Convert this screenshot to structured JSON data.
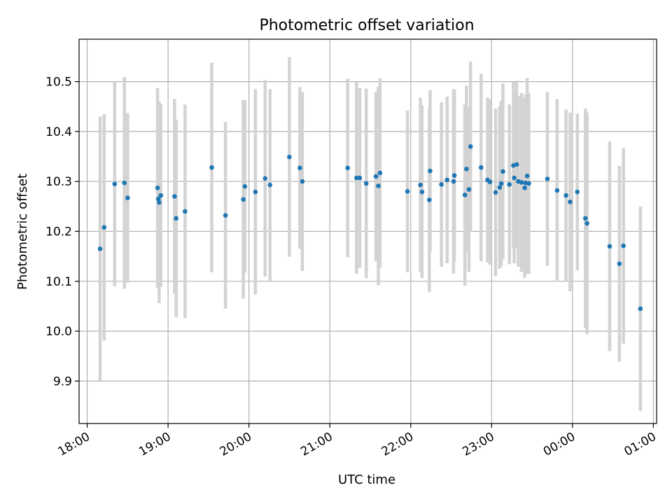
{
  "chart_data": {
    "type": "scatter",
    "title": "Photometric offset variation",
    "xlabel": "UTC time",
    "ylabel": "Photometric offset",
    "grid": true,
    "xlim": [
      -0.1,
      7.04
    ],
    "ylim": [
      9.815,
      10.585
    ],
    "xticks": [
      {
        "v": 0,
        "label": "18:00"
      },
      {
        "v": 1,
        "label": "19:00"
      },
      {
        "v": 2,
        "label": "20:00"
      },
      {
        "v": 3,
        "label": "21:00"
      },
      {
        "v": 4,
        "label": "22:00"
      },
      {
        "v": 5,
        "label": "23:00"
      },
      {
        "v": 6,
        "label": "00:00"
      },
      {
        "v": 7,
        "label": "01:00"
      }
    ],
    "yticks": [
      {
        "v": 9.9,
        "label": "9.9"
      },
      {
        "v": 10.0,
        "label": "10.0"
      },
      {
        "v": 10.1,
        "label": "10.1"
      },
      {
        "v": 10.2,
        "label": "10.2"
      },
      {
        "v": 10.3,
        "label": "10.3"
      },
      {
        "v": 10.4,
        "label": "10.4"
      },
      {
        "v": 10.5,
        "label": "10.5"
      }
    ],
    "colors": {
      "point": "#1f77b4",
      "errorbar": "#d3d3d3",
      "grid": "#b0b0b0"
    },
    "series": [
      {
        "name": "offset",
        "x_hours_from_1800": [
          0.16,
          0.21,
          0.34,
          0.46,
          0.5,
          0.87,
          0.88,
          0.89,
          0.91,
          1.08,
          1.1,
          1.21,
          1.54,
          1.71,
          1.93,
          1.95,
          2.08,
          2.2,
          2.26,
          2.5,
          2.63,
          2.66,
          3.22,
          3.33,
          3.37,
          3.45,
          3.57,
          3.6,
          3.62,
          3.96,
          4.12,
          4.14,
          4.23,
          4.24,
          4.38,
          4.45,
          4.53,
          4.54,
          4.67,
          4.69,
          4.72,
          4.74,
          4.87,
          4.95,
          4.98,
          5.05,
          5.1,
          5.12,
          5.14,
          5.22,
          5.27,
          5.28,
          5.31,
          5.33,
          5.37,
          5.41,
          5.42,
          5.44,
          5.46,
          5.69,
          5.81,
          5.92,
          5.97,
          6.06,
          6.16,
          6.18,
          6.46,
          6.58,
          6.63,
          6.84
        ],
        "y": [
          10.165,
          10.208,
          10.295,
          10.297,
          10.267,
          10.287,
          10.265,
          10.258,
          10.272,
          10.27,
          10.226,
          10.24,
          10.328,
          10.232,
          10.264,
          10.29,
          10.279,
          10.306,
          10.293,
          10.349,
          10.327,
          10.3,
          10.327,
          10.307,
          10.307,
          10.296,
          10.31,
          10.291,
          10.317,
          10.28,
          10.293,
          10.279,
          10.263,
          10.321,
          10.294,
          10.303,
          10.3,
          10.312,
          10.273,
          10.325,
          10.284,
          10.37,
          10.328,
          10.303,
          10.299,
          10.278,
          10.288,
          10.296,
          10.32,
          10.294,
          10.332,
          10.307,
          10.334,
          10.3,
          10.298,
          10.287,
          10.297,
          10.311,
          10.296,
          10.305,
          10.282,
          10.272,
          10.259,
          10.279,
          10.226,
          10.216,
          10.17,
          10.135,
          10.171,
          10.045
        ],
        "yerr": [
          0.265,
          0.227,
          0.205,
          0.212,
          0.17,
          0.2,
          0.178,
          0.202,
          0.183,
          0.195,
          0.198,
          0.214,
          0.21,
          0.187,
          0.199,
          0.173,
          0.206,
          0.197,
          0.192,
          0.2,
          0.162,
          0.179,
          0.179,
          0.192,
          0.18,
          0.19,
          0.17,
          0.199,
          0.19,
          0.162,
          0.175,
          0.173,
          0.184,
          0.162,
          0.165,
          0.167,
          0.185,
          0.172,
          0.182,
          0.167,
          0.165,
          0.17,
          0.188,
          0.165,
          0.166,
          0.168,
          0.163,
          0.166,
          0.176,
          0.16,
          0.167,
          0.171,
          0.168,
          0.171,
          0.179,
          0.18,
          0.177,
          0.196,
          0.181,
          0.174,
          0.183,
          0.172,
          0.179,
          0.157,
          0.22,
          0.222,
          0.21,
          0.196,
          0.196,
          0.205
        ]
      }
    ]
  }
}
